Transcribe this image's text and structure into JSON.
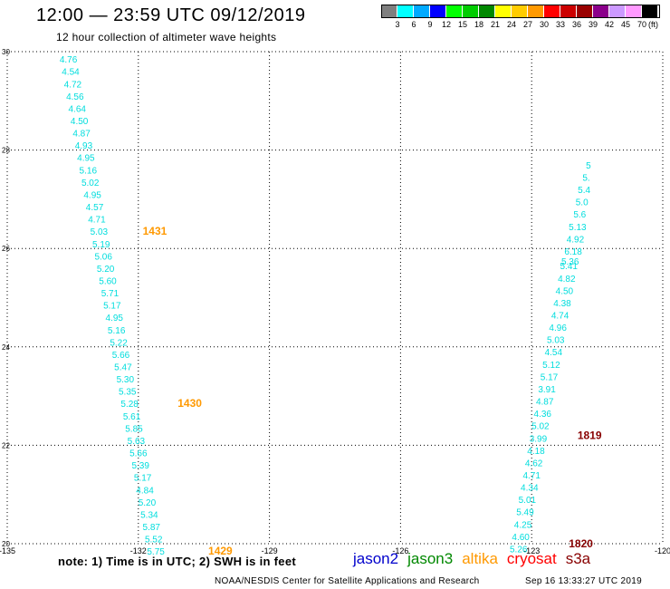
{
  "header": {
    "title": "12:00 — 23:59 UTC 09/12/2019",
    "subtitle": "12 hour collection of altimeter wave heights"
  },
  "color_scale": {
    "units": "(ft)",
    "bins": [
      {
        "label": "3",
        "color": "#7f7f7f"
      },
      {
        "label": "6",
        "color": "#00ffff"
      },
      {
        "label": "9",
        "color": "#00aaff"
      },
      {
        "label": "12",
        "color": "#0000ff"
      },
      {
        "label": "15",
        "color": "#00ff00"
      },
      {
        "label": "18",
        "color": "#00cc00"
      },
      {
        "label": "21",
        "color": "#008800"
      },
      {
        "label": "24",
        "color": "#ffff00"
      },
      {
        "label": "27",
        "color": "#ffcc00"
      },
      {
        "label": "30",
        "color": "#ff9900"
      },
      {
        "label": "33",
        "color": "#ff0000"
      },
      {
        "label": "36",
        "color": "#cc0000"
      },
      {
        "label": "39",
        "color": "#990000"
      },
      {
        "label": "42",
        "color": "#8b008b"
      },
      {
        "label": "45",
        "color": "#cc99ff"
      },
      {
        "label": "70",
        "color": "#ff99ff"
      },
      {
        "label": "",
        "color": "#000000"
      }
    ]
  },
  "map": {
    "lon_ticks": [
      "-135",
      "-132",
      "-129",
      "-126",
      "-123",
      "-120"
    ],
    "lat_ticks": [
      "20",
      "22",
      "24",
      "26",
      "28",
      "30"
    ],
    "lon_range": [
      -135,
      -120
    ],
    "lat_range": [
      20,
      30
    ]
  },
  "tracks": [
    {
      "name": "west-pass",
      "color": "#00dddd",
      "points": [
        {
          "lon": -133.6,
          "lat": 29.85,
          "swh": "4.76"
        },
        {
          "lon": -133.55,
          "lat": 29.6,
          "swh": "4.54"
        },
        {
          "lon": -133.5,
          "lat": 29.35,
          "swh": "4.72"
        },
        {
          "lon": -133.45,
          "lat": 29.1,
          "swh": "4.56"
        },
        {
          "lon": -133.4,
          "lat": 28.85,
          "swh": "4.64"
        },
        {
          "lon": -133.35,
          "lat": 28.6,
          "swh": "4.50"
        },
        {
          "lon": -133.3,
          "lat": 28.35,
          "swh": "4.87"
        },
        {
          "lon": -133.25,
          "lat": 28.1,
          "swh": "4.93"
        },
        {
          "lon": -133.2,
          "lat": 27.85,
          "swh": "4.95"
        },
        {
          "lon": -133.15,
          "lat": 27.6,
          "swh": "5.16"
        },
        {
          "lon": -133.1,
          "lat": 27.35,
          "swh": "5.02"
        },
        {
          "lon": -133.05,
          "lat": 27.1,
          "swh": "4.95"
        },
        {
          "lon": -133.0,
          "lat": 26.85,
          "swh": "4.57"
        },
        {
          "lon": -132.95,
          "lat": 26.6,
          "swh": "4.71"
        },
        {
          "lon": -132.9,
          "lat": 26.35,
          "swh": "5.03"
        },
        {
          "lon": -132.85,
          "lat": 26.1,
          "swh": "5.19"
        },
        {
          "lon": -132.8,
          "lat": 25.85,
          "swh": "5.06"
        },
        {
          "lon": -132.75,
          "lat": 25.6,
          "swh": "5.20"
        },
        {
          "lon": -132.7,
          "lat": 25.35,
          "swh": "5.60"
        },
        {
          "lon": -132.65,
          "lat": 25.1,
          "swh": "5.71"
        },
        {
          "lon": -132.6,
          "lat": 24.85,
          "swh": "5.17"
        },
        {
          "lon": -132.55,
          "lat": 24.6,
          "swh": "4.95"
        },
        {
          "lon": -132.5,
          "lat": 24.35,
          "swh": "5.16"
        },
        {
          "lon": -132.45,
          "lat": 24.1,
          "swh": "5.22"
        },
        {
          "lon": -132.4,
          "lat": 23.85,
          "swh": "5.66"
        },
        {
          "lon": -132.35,
          "lat": 23.6,
          "swh": "5.47"
        },
        {
          "lon": -132.3,
          "lat": 23.35,
          "swh": "5.30"
        },
        {
          "lon": -132.25,
          "lat": 23.1,
          "swh": "5.35"
        },
        {
          "lon": -132.2,
          "lat": 22.85,
          "swh": "5.28"
        },
        {
          "lon": -132.15,
          "lat": 22.6,
          "swh": "5.61"
        },
        {
          "lon": -132.1,
          "lat": 22.35,
          "swh": "5.85"
        },
        {
          "lon": -132.05,
          "lat": 22.1,
          "swh": "5.63"
        },
        {
          "lon": -132.0,
          "lat": 21.85,
          "swh": "5.66"
        },
        {
          "lon": -131.95,
          "lat": 21.6,
          "swh": "5.39"
        },
        {
          "lon": -131.9,
          "lat": 21.35,
          "swh": "5.17"
        },
        {
          "lon": -131.85,
          "lat": 21.1,
          "swh": "4.84"
        },
        {
          "lon": -131.8,
          "lat": 20.85,
          "swh": "5.20"
        },
        {
          "lon": -131.75,
          "lat": 20.6,
          "swh": "5.34"
        },
        {
          "lon": -131.7,
          "lat": 20.35,
          "swh": "5.87"
        },
        {
          "lon": -131.65,
          "lat": 20.1,
          "swh": "5.52"
        },
        {
          "lon": -131.6,
          "lat": 19.85,
          "swh": "5.75"
        }
      ]
    },
    {
      "name": "east-pass",
      "color": "#00dddd",
      "points": [
        {
          "lon": -123.3,
          "lat": 19.9,
          "swh": "5.26"
        },
        {
          "lon": -123.25,
          "lat": 20.15,
          "swh": "4.60"
        },
        {
          "lon": -123.2,
          "lat": 20.4,
          "swh": "4.25"
        },
        {
          "lon": -123.15,
          "lat": 20.65,
          "swh": "5.49"
        },
        {
          "lon": -123.1,
          "lat": 20.9,
          "swh": "5.01"
        },
        {
          "lon": -123.05,
          "lat": 21.15,
          "swh": "4.34"
        },
        {
          "lon": -123.0,
          "lat": 21.4,
          "swh": "4.71"
        },
        {
          "lon": -122.95,
          "lat": 21.65,
          "swh": "4.62"
        },
        {
          "lon": -122.9,
          "lat": 21.9,
          "swh": "4.18"
        },
        {
          "lon": -122.85,
          "lat": 22.15,
          "swh": "3.99"
        },
        {
          "lon": -122.8,
          "lat": 22.4,
          "swh": "5.02"
        },
        {
          "lon": -122.75,
          "lat": 22.65,
          "swh": "4.36"
        },
        {
          "lon": -122.7,
          "lat": 22.9,
          "swh": "4.87"
        },
        {
          "lon": -122.65,
          "lat": 23.15,
          "swh": "3.91"
        },
        {
          "lon": -122.6,
          "lat": 23.4,
          "swh": "5.17"
        },
        {
          "lon": -122.55,
          "lat": 23.65,
          "swh": "5.12"
        },
        {
          "lon": -122.5,
          "lat": 23.9,
          "swh": "4.54"
        },
        {
          "lon": -122.45,
          "lat": 24.15,
          "swh": "5.03"
        },
        {
          "lon": -122.4,
          "lat": 24.4,
          "swh": "4.96"
        },
        {
          "lon": -122.35,
          "lat": 24.65,
          "swh": "4.74"
        },
        {
          "lon": -122.3,
          "lat": 24.9,
          "swh": "4.38"
        },
        {
          "lon": -122.25,
          "lat": 25.15,
          "swh": "4.50"
        },
        {
          "lon": -122.2,
          "lat": 25.4,
          "swh": "4.82"
        },
        {
          "lon": -122.15,
          "lat": 25.65,
          "swh": "5.41"
        },
        {
          "lon": -122.12,
          "lat": 25.75,
          "swh": "5.36"
        },
        {
          "lon": -122.05,
          "lat": 25.95,
          "swh": "6.18"
        },
        {
          "lon": -122.0,
          "lat": 26.2,
          "swh": "4.92"
        },
        {
          "lon": -121.95,
          "lat": 26.45,
          "swh": "5.13"
        },
        {
          "lon": -121.9,
          "lat": 26.7,
          "swh": "5.6"
        },
        {
          "lon": -121.85,
          "lat": 26.95,
          "swh": "5.0"
        },
        {
          "lon": -121.8,
          "lat": 27.2,
          "swh": "5.4"
        },
        {
          "lon": -121.75,
          "lat": 27.45,
          "swh": "5."
        },
        {
          "lon": -121.7,
          "lat": 27.7,
          "swh": "5"
        }
      ]
    }
  ],
  "time_labels": [
    {
      "text": "1431",
      "lon": -131.9,
      "lat": 26.35,
      "color": "#ff9900"
    },
    {
      "text": "1430",
      "lon": -131.1,
      "lat": 22.85,
      "color": "#ff9900"
    },
    {
      "text": "1429",
      "lon": -130.4,
      "lat": 19.85,
      "color": "#ff9900"
    },
    {
      "text": "1819",
      "lon": -121.95,
      "lat": 22.2,
      "color": "#880000"
    },
    {
      "text": "1820",
      "lon": -122.15,
      "lat": 20.0,
      "color": "#880000"
    }
  ],
  "note": "note:  1) Time is in UTC;  2) SWH is in feet",
  "satellites": [
    {
      "name": "jason2",
      "color": "#0000cc"
    },
    {
      "name": "jason3",
      "color": "#008800"
    },
    {
      "name": "altika",
      "color": "#ff9900"
    },
    {
      "name": "cryosat",
      "color": "#ff0000"
    },
    {
      "name": "s3a",
      "color": "#880000"
    }
  ],
  "footer": {
    "credit": "NOAA/NESDIS Center for Satellite Applications and Research",
    "timestamp": "Sep 16 13:33:27 UTC 2019"
  }
}
